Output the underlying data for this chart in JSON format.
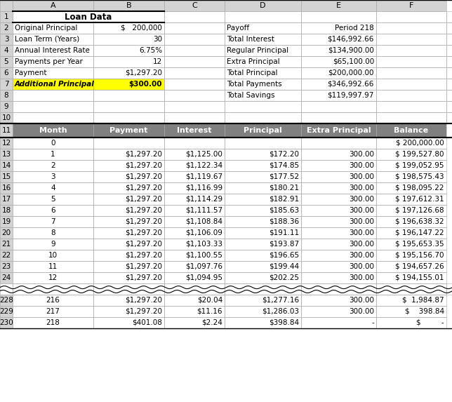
{
  "title": "Loan Data",
  "loan_labels": [
    "Original Principal",
    "Loan Term (Years)",
    "Annual Interest Rate",
    "Payments per Year",
    "Payment",
    "Additional Principal"
  ],
  "loan_values": [
    "$   200,000",
    "30",
    "6.75%",
    "12",
    "$1,297.20",
    "$300.00"
  ],
  "sum_labels": [
    "Payoff",
    "Total Interest",
    "Regular Principal",
    "Extra Principal",
    "Total Principal",
    "Total Payments",
    "Total Savings"
  ],
  "sum_vals": [
    "Period 218",
    "$146,992.66",
    "$134,900.00",
    "$65,100.00",
    "$200,000.00",
    "$346,992.66",
    "$119,997.97"
  ],
  "table_headers": [
    "Month",
    "Payment",
    "Interest",
    "Principal",
    "Extra Principal",
    "Balance"
  ],
  "table_rows": [
    [
      "0",
      "",
      "",
      "",
      "",
      "$ 200,000.00"
    ],
    [
      "1",
      "$1,297.20",
      "$1,125.00",
      "$172.20",
      "300.00",
      "$ 199,527.80"
    ],
    [
      "2",
      "$1,297.20",
      "$1,122.34",
      "$174.85",
      "300.00",
      "$ 199,052.95"
    ],
    [
      "3",
      "$1,297.20",
      "$1,119.67",
      "$177.52",
      "300.00",
      "$ 198,575.43"
    ],
    [
      "4",
      "$1,297.20",
      "$1,116.99",
      "$180.21",
      "300.00",
      "$ 198,095.22"
    ],
    [
      "5",
      "$1,297.20",
      "$1,114.29",
      "$182.91",
      "300.00",
      "$ 197,612.31"
    ],
    [
      "6",
      "$1,297.20",
      "$1,111.57",
      "$185.63",
      "300.00",
      "$ 197,126.68"
    ],
    [
      "7",
      "$1,297.20",
      "$1,108.84",
      "$188.36",
      "300.00",
      "$ 196,638.32"
    ],
    [
      "8",
      "$1,297.20",
      "$1,106.09",
      "$191.11",
      "300.00",
      "$ 196,147.22"
    ],
    [
      "9",
      "$1,297.20",
      "$1,103.33",
      "$193.87",
      "300.00",
      "$ 195,653.35"
    ],
    [
      "10",
      "$1,297.20",
      "$1,100.55",
      "$196.65",
      "300.00",
      "$ 195,156.70"
    ],
    [
      "11",
      "$1,297.20",
      "$1,097.76",
      "$199.44",
      "300.00",
      "$ 194,657.26"
    ],
    [
      "12",
      "$1,297.20",
      "$1,094.95",
      "$202.25",
      "300.00",
      "$ 194,155.01"
    ]
  ],
  "bottom_rows": [
    [
      "216",
      "$1,297.20",
      "$20.04",
      "$1,277.16",
      "300.00",
      "$  1,984.87"
    ],
    [
      "217",
      "$1,297.20",
      "$11.16",
      "$1,286.03",
      "300.00",
      "$    398.84"
    ],
    [
      "218",
      "$401.08",
      "$2.24",
      "$398.84",
      "-",
      "$         -"
    ]
  ],
  "col_letters": [
    "",
    "A",
    "B",
    "C",
    "D",
    "E",
    "F"
  ],
  "header_bg": "#808080",
  "header_fg": "#ffffff",
  "row7_bg": "#ffff00",
  "index_col_bg": "#d3d3d3",
  "col_header_bg": "#d3d3d3",
  "bg_color": "#ffffff",
  "fig_w": 6.44,
  "fig_h": 5.73,
  "dpi": 100
}
